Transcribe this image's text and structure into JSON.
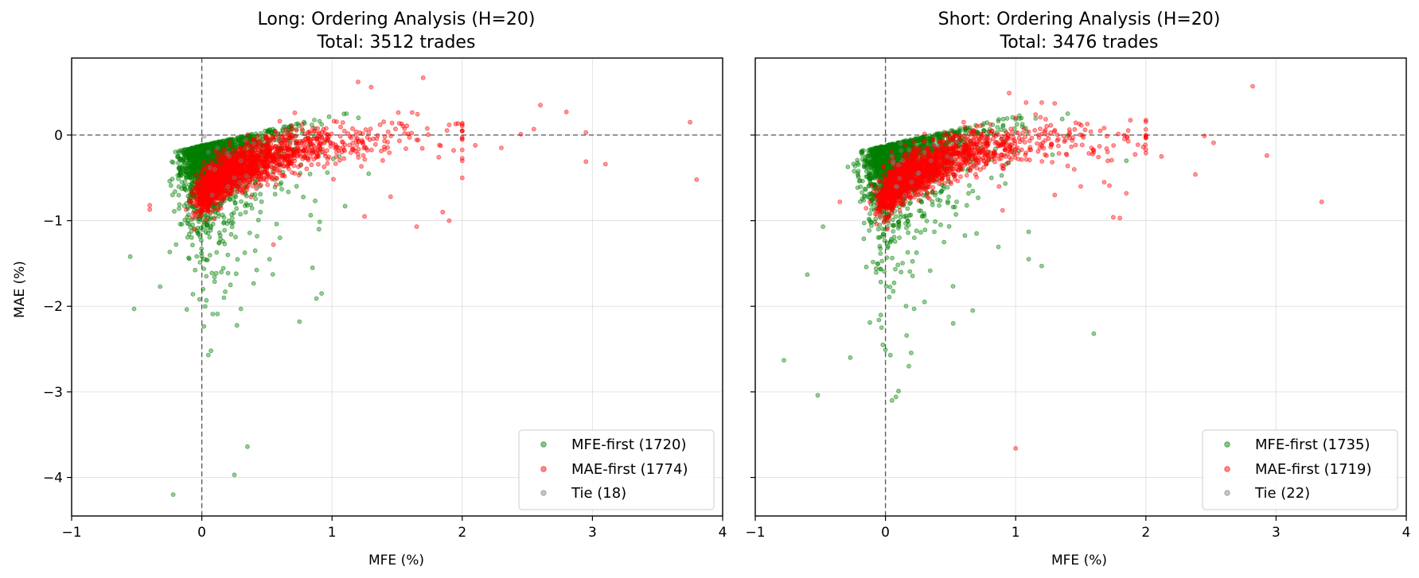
{
  "chart_data": [
    {
      "type": "scatter",
      "title": "Long: Ordering Analysis (H=20)",
      "subtitle": "Total: 3512 trades",
      "xlabel": "MFE (%)",
      "ylabel": "MAE (%)",
      "xlim": [
        -1,
        4
      ],
      "ylim": [
        -4.45,
        0.9
      ],
      "xticks": [
        -1,
        0,
        1,
        2,
        3,
        4
      ],
      "yticks": [
        -4,
        -3,
        -2,
        -1,
        0
      ],
      "xtick_labels": [
        "−1",
        "0",
        "1",
        "2",
        "3",
        "4"
      ],
      "ytick_labels": [
        "−4",
        "−3",
        "−2",
        "−1",
        "0"
      ],
      "grid": true,
      "reference_lines": {
        "x": 0,
        "y": 0
      },
      "legend_position": "lower-right",
      "series": [
        {
          "name": "MFE-first (1720)",
          "color": "#008000",
          "count": 1720,
          "outliers": [
            [
              -0.55,
              -1.42
            ],
            [
              -0.52,
              -2.03
            ],
            [
              -0.32,
              -1.77
            ],
            [
              -0.22,
              -4.2
            ],
            [
              0.05,
              -2.57
            ],
            [
              0.07,
              -2.52
            ],
            [
              0.12,
              -2.09
            ],
            [
              0.17,
              -1.9
            ],
            [
              0.18,
              -1.83
            ],
            [
              0.22,
              -1.75
            ],
            [
              0.25,
              -3.97
            ],
            [
              0.3,
              -2.03
            ],
            [
              0.35,
              -3.64
            ],
            [
              0.52,
              -1.45
            ],
            [
              0.75,
              -2.18
            ],
            [
              0.85,
              -1.55
            ],
            [
              0.88,
              -1.91
            ],
            [
              0.92,
              -1.85
            ],
            [
              0.9,
              -1.1
            ],
            [
              0.6,
              -1.2
            ],
            [
              1.1,
              -0.83
            ],
            [
              0.45,
              -0.9
            ],
            [
              0.2,
              -1.4
            ],
            [
              0.15,
              -1.6
            ],
            [
              0.02,
              -1.45
            ]
          ]
        },
        {
          "name": "MAE-first (1774)",
          "color": "#ff0000",
          "count": 1774,
          "outliers": [
            [
              3.75,
              0.15
            ],
            [
              3.8,
              -0.52
            ],
            [
              2.8,
              0.27
            ],
            [
              2.95,
              0.03
            ],
            [
              3.1,
              -0.34
            ],
            [
              2.95,
              -0.31
            ],
            [
              2.6,
              0.35
            ],
            [
              2.55,
              0.07
            ],
            [
              2.45,
              0.01
            ],
            [
              2.3,
              -0.15
            ],
            [
              1.7,
              0.67
            ],
            [
              1.9,
              0.12
            ],
            [
              1.95,
              0.13
            ],
            [
              1.85,
              -0.9
            ],
            [
              1.9,
              -1.0
            ],
            [
              1.65,
              -1.07
            ],
            [
              1.25,
              -0.95
            ],
            [
              1.2,
              0.62
            ],
            [
              1.3,
              0.56
            ],
            [
              2.0,
              -0.5
            ],
            [
              2.1,
              -0.12
            ],
            [
              1.45,
              -0.72
            ],
            [
              0.55,
              -1.28
            ],
            [
              -0.4,
              -0.87
            ],
            [
              -0.4,
              -0.82
            ],
            [
              2.0,
              -0.3
            ]
          ]
        },
        {
          "name": "Tie (18)",
          "color": "#808080",
          "count": 18,
          "outliers": [
            [
              0.1,
              -0.4
            ],
            [
              0.2,
              -0.6
            ],
            [
              0.05,
              -0.2
            ],
            [
              0.3,
              -0.3
            ],
            [
              0.15,
              -0.8
            ],
            [
              0.4,
              -0.1
            ],
            [
              0.25,
              -0.5
            ],
            [
              0.12,
              -0.15
            ],
            [
              0.6,
              -0.05
            ],
            [
              0.08,
              -0.7
            ]
          ]
        }
      ]
    },
    {
      "type": "scatter",
      "title": "Short: Ordering Analysis (H=20)",
      "subtitle": "Total: 3476 trades",
      "xlabel": "MFE (%)",
      "ylabel": "",
      "xlim": [
        -1,
        4
      ],
      "ylim": [
        -4.45,
        0.9
      ],
      "xticks": [
        -1,
        0,
        1,
        2,
        3,
        4
      ],
      "yticks": [
        -4,
        -3,
        -2,
        -1,
        0
      ],
      "xtick_labels": [
        "−1",
        "0",
        "1",
        "2",
        "3",
        "4"
      ],
      "ytick_labels": [],
      "grid": true,
      "reference_lines": {
        "x": 0,
        "y": 0
      },
      "legend_position": "lower-right",
      "series": [
        {
          "name": "MFE-first (1735)",
          "color": "#008000",
          "count": 1735,
          "outliers": [
            [
              -0.78,
              -2.63
            ],
            [
              -0.52,
              -3.04
            ],
            [
              -0.27,
              -2.6
            ],
            [
              -0.6,
              -1.63
            ],
            [
              -0.48,
              -1.07
            ],
            [
              -0.05,
              -2.16
            ],
            [
              -0.03,
              -2.25
            ],
            [
              -0.02,
              -2.45
            ],
            [
              0.0,
              -2.51
            ],
            [
              0.05,
              -3.1
            ],
            [
              0.08,
              -3.06
            ],
            [
              0.1,
              -2.99
            ],
            [
              0.18,
              -2.7
            ],
            [
              0.3,
              -1.95
            ],
            [
              0.52,
              -2.2
            ],
            [
              0.67,
              -2.05
            ],
            [
              1.6,
              -2.32
            ],
            [
              1.2,
              -1.53
            ],
            [
              1.1,
              -1.45
            ],
            [
              1.1,
              -1.13
            ],
            [
              0.7,
              -1.15
            ],
            [
              0.12,
              -1.6
            ],
            [
              0.22,
              -2.03
            ],
            [
              1.85,
              -0.3
            ],
            [
              0.02,
              -1.3
            ]
          ]
        },
        {
          "name": "MAE-first (1719)",
          "color": "#ff0000",
          "count": 1719,
          "outliers": [
            [
              2.82,
              0.57
            ],
            [
              3.35,
              -0.78
            ],
            [
              2.93,
              -0.24
            ],
            [
              2.52,
              -0.09
            ],
            [
              2.45,
              -0.01
            ],
            [
              2.38,
              -0.46
            ],
            [
              2.12,
              -0.25
            ],
            [
              1.98,
              -0.14
            ],
            [
              1.85,
              -0.68
            ],
            [
              1.8,
              -0.97
            ],
            [
              1.75,
              -0.96
            ],
            [
              1.72,
              -0.59
            ],
            [
              1.68,
              -0.55
            ],
            [
              1.5,
              -0.6
            ],
            [
              1.4,
              -0.36
            ],
            [
              1.0,
              -3.66
            ],
            [
              0.95,
              0.49
            ],
            [
              1.08,
              0.38
            ],
            [
              1.2,
              0.38
            ],
            [
              1.3,
              0.37
            ],
            [
              1.55,
              0.13
            ],
            [
              1.65,
              0.05
            ],
            [
              1.6,
              -0.2
            ],
            [
              1.45,
              -0.4
            ],
            [
              -0.35,
              -0.78
            ],
            [
              0.9,
              -0.88
            ],
            [
              1.3,
              -0.7
            ],
            [
              -0.12,
              -0.78
            ]
          ]
        },
        {
          "name": "Tie (22)",
          "color": "#808080",
          "count": 22,
          "outliers": [
            [
              0.1,
              -0.35
            ],
            [
              0.2,
              -0.55
            ],
            [
              0.05,
              -0.25
            ],
            [
              0.3,
              -0.2
            ],
            [
              0.15,
              -0.7
            ],
            [
              0.4,
              -0.12
            ],
            [
              0.25,
              -0.45
            ],
            [
              0.12,
              -0.18
            ],
            [
              0.55,
              -0.08
            ],
            [
              0.08,
              -0.6
            ],
            [
              0.35,
              -0.3
            ]
          ]
        }
      ]
    }
  ]
}
